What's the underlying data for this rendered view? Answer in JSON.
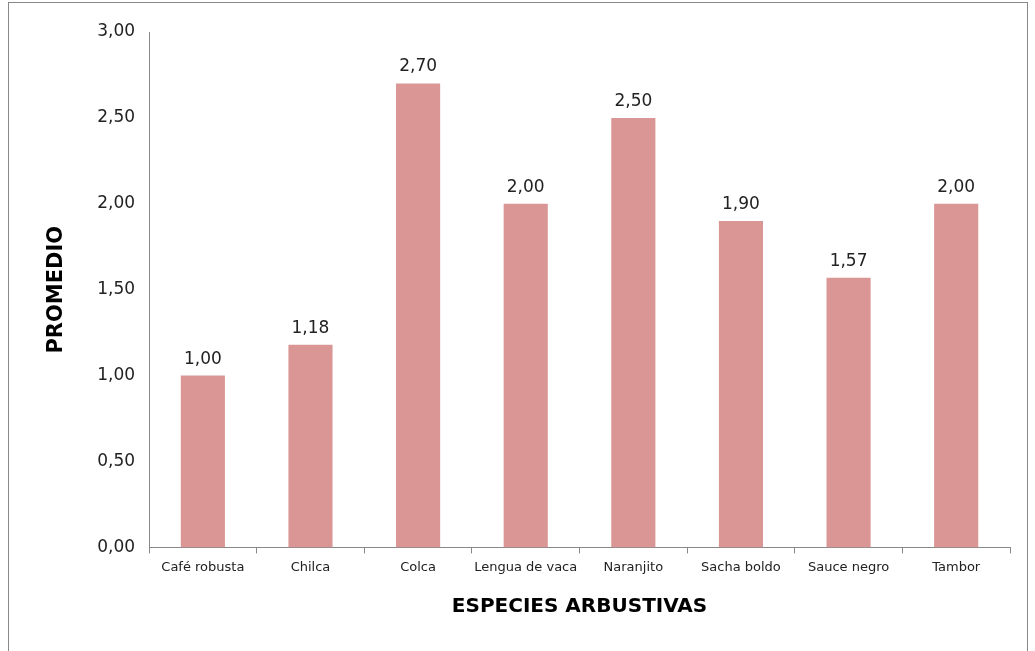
{
  "chart_data": {
    "type": "bar",
    "xlabel": "ESPECIES ARBUSTIVAS",
    "ylabel": "PROMEDIO",
    "categories": [
      "Café robusta",
      "Chilca",
      "Colca",
      "Lengua de vaca",
      "Naranjito",
      "Sacha boldo",
      "Sauce negro",
      "Tambor"
    ],
    "values": [
      1.0,
      1.18,
      2.7,
      2.0,
      2.5,
      1.9,
      1.57,
      2.0
    ],
    "value_labels": [
      "1,00",
      "1,18",
      "2,70",
      "2,00",
      "2,50",
      "1,90",
      "1,57",
      "2,00"
    ],
    "color": "#d99694",
    "ylim": [
      0,
      3
    ],
    "yticks": [
      {
        "value": 0,
        "label": "0,00"
      },
      {
        "value": 0.5,
        "label": "0,50"
      },
      {
        "value": 1,
        "label": "1,00"
      },
      {
        "value": 1.5,
        "label": "1,50"
      },
      {
        "value": 2,
        "label": "2,00"
      },
      {
        "value": 2.5,
        "label": "2,50"
      },
      {
        "value": 3,
        "label": "3,00"
      }
    ],
    "grid": false,
    "legend": false
  }
}
